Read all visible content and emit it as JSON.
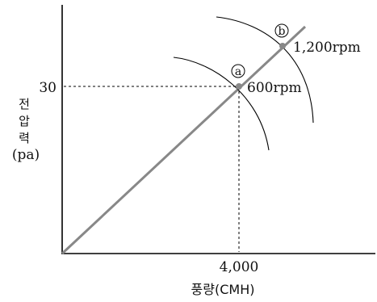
{
  "x_axis": {
    "title": "풍량(CMH)",
    "tick_label": "4,000"
  },
  "y_axis": {
    "title_chars": [
      "전",
      "압",
      "력"
    ],
    "title_unit": "(pa)",
    "tick_label": "30"
  },
  "points": [
    {
      "marker": "a",
      "label": "600rpm"
    },
    {
      "marker": "b",
      "label": "1,200rpm"
    }
  ],
  "colors": {
    "line": "#888888",
    "axis": "#000000"
  }
}
